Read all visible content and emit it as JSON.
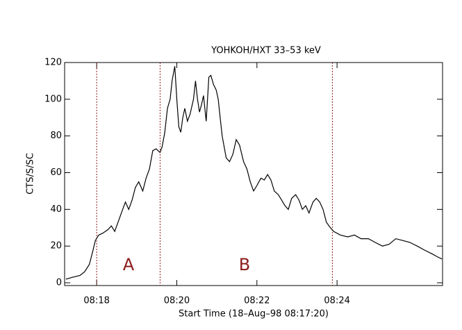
{
  "chart_data": {
    "type": "line",
    "title": "YOHKOH/HXT 33–53 keV",
    "xlabel": "Start Time (18–Aug–98 08:17:20)",
    "ylabel": "CTS/S/SC",
    "xlim": [
      -8,
      558
    ],
    "ylim": [
      -1.5,
      120
    ],
    "xticks": [
      {
        "value": 40,
        "label": "08:18"
      },
      {
        "value": 160,
        "label": "08:20"
      },
      {
        "value": 280,
        "label": "08:22"
      },
      {
        "value": 400,
        "label": "08:24"
      }
    ],
    "yticks": [
      0,
      20,
      40,
      60,
      80,
      100,
      120
    ],
    "vlines": [
      40,
      135,
      393
    ],
    "vline_color": "#8b1a1a",
    "annotations": [
      "A",
      "B"
    ],
    "series": [
      {
        "name": "HXT",
        "color": "#000000",
        "x": [
          -6,
          4,
          15,
          22,
          29,
          34,
          38,
          43,
          49,
          57,
          62,
          67,
          72,
          77,
          83,
          88,
          93,
          98,
          103,
          109,
          114,
          119,
          124,
          129,
          135,
          138,
          142,
          146,
          150,
          153,
          157,
          160,
          163,
          166,
          169,
          172,
          176,
          180,
          185,
          188,
          191,
          194,
          197,
          200,
          204,
          208,
          211,
          215,
          219,
          222,
          225,
          228,
          234,
          239,
          244,
          249,
          254,
          260,
          265,
          270,
          275,
          280,
          286,
          291,
          296,
          301,
          306,
          312,
          317,
          322,
          327,
          332,
          338,
          343,
          348,
          353,
          358,
          364,
          369,
          374,
          379,
          384,
          390,
          395,
          405,
          416,
          426,
          436,
          447,
          457,
          468,
          478,
          488,
          499,
          509,
          520,
          530,
          541,
          551,
          557
        ],
        "values": [
          2,
          3,
          4,
          6,
          10,
          17,
          23,
          26,
          27,
          29,
          31,
          28,
          33,
          38,
          44,
          40,
          45,
          52,
          55,
          50,
          57,
          62,
          72,
          73,
          71,
          74,
          82,
          95,
          100,
          110,
          118,
          100,
          85,
          82,
          90,
          95,
          88,
          92,
          100,
          110,
          100,
          93,
          97,
          102,
          88,
          112,
          113,
          108,
          105,
          100,
          90,
          80,
          68,
          66,
          70,
          78,
          75,
          66,
          62,
          55,
          50,
          53,
          57,
          56,
          59,
          56,
          50,
          48,
          45,
          42,
          40,
          46,
          48,
          45,
          40,
          42,
          38,
          44,
          46,
          44,
          40,
          33,
          30,
          28,
          26,
          25,
          26,
          24,
          24,
          22,
          20,
          21,
          24,
          23,
          22,
          20,
          18,
          16,
          14,
          13
        ]
      }
    ]
  }
}
